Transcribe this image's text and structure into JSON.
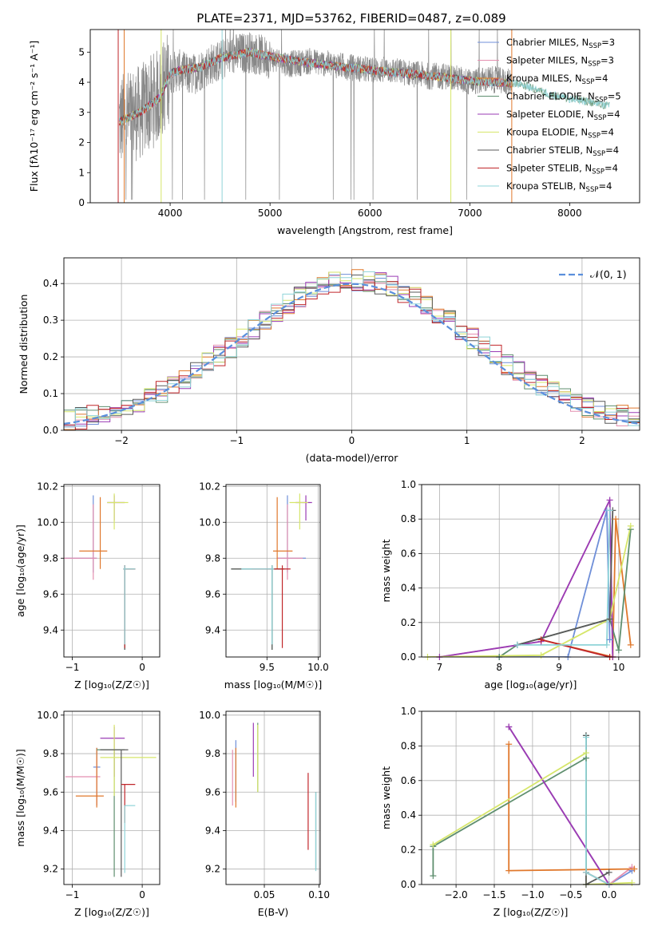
{
  "figure": {
    "title": "PLATE=2371, MJD=53762, FIBERID=0487, z=0.089"
  },
  "colors": {
    "Chabrier MILES": "#6f8fd8",
    "Salpeter MILES": "#e48fb0",
    "Kroupa MILES": "#e0782c",
    "Chabrier ELODIE": "#5f8f6f",
    "Salpeter ELODIE": "#9a3bb5",
    "Kroupa ELODIE": "#d6e66a",
    "Chabrier STELIB": "#5a5a5a",
    "Salpeter STELIB": "#c0262a",
    "Kroupa STELIB": "#8fd4d8",
    "data": "#888888",
    "normal": "#5a8fdc"
  },
  "legend_panel1": [
    {
      "name": "Chabrier MILES",
      "label_main": "Chabrier MILES, N",
      "label_sub": "SSP",
      "label_end": "=3"
    },
    {
      "name": "Salpeter MILES",
      "label_main": "Salpeter MILES, N",
      "label_sub": "SSP",
      "label_end": "=3"
    },
    {
      "name": "Kroupa MILES",
      "label_main": "Kroupa MILES, N",
      "label_sub": "SSP",
      "label_end": "=4"
    },
    {
      "name": "Chabrier ELODIE",
      "label_main": "Chabrier ELODIE, N",
      "label_sub": "SSP",
      "label_end": "=5"
    },
    {
      "name": "Salpeter ELODIE",
      "label_main": "Salpeter ELODIE, N",
      "label_sub": "SSP",
      "label_end": "=4"
    },
    {
      "name": "Kroupa ELODIE",
      "label_main": "Kroupa ELODIE, N",
      "label_sub": "SSP",
      "label_end": "=4"
    },
    {
      "name": "Chabrier STELIB",
      "label_main": "Chabrier STELIB, N",
      "label_sub": "SSP",
      "label_end": "=4"
    },
    {
      "name": "Salpeter STELIB",
      "label_main": "Salpeter STELIB, N",
      "label_sub": "SSP",
      "label_end": "=4"
    },
    {
      "name": "Kroupa STELIB",
      "label_main": "Kroupa STELIB, N",
      "label_sub": "SSP",
      "label_end": "=4"
    }
  ],
  "legend_panel2": {
    "label": "𝒩(0, 1)"
  },
  "chart_data": [
    {
      "id": "spectrum",
      "type": "line",
      "xlabel": "wavelength [Angstrom, rest frame]",
      "ylabel_main": "Flux [f",
      "ylabel_rest": "λ10⁻¹⁷ erg cm⁻² s⁻¹ A⁻¹]",
      "xlim": [
        3200,
        8700
      ],
      "ylim": [
        0,
        5.75
      ],
      "xticks": [
        4000,
        5000,
        6000,
        7000,
        8000
      ],
      "yticks": [
        0,
        1,
        2,
        3,
        4,
        5
      ],
      "grid": false,
      "legend_position": "top-right",
      "data_x": [
        3500,
        3600,
        3700,
        3800,
        3900,
        4000,
        4100,
        4200,
        4300,
        4400,
        4500,
        4600,
        4800,
        5000,
        5200,
        5400,
        5600,
        5800,
        6000,
        6200,
        6400,
        6600,
        6800,
        7000,
        7200,
        7400
      ],
      "data_y": [
        2.7,
        2.9,
        3.0,
        3.3,
        3.6,
        4.3,
        4.4,
        4.2,
        4.4,
        4.6,
        4.7,
        4.9,
        5.0,
        4.8,
        4.6,
        4.7,
        4.6,
        4.5,
        4.4,
        4.4,
        4.3,
        4.2,
        4.2,
        4.0,
        4.1,
        4.0
      ],
      "model_x": [
        3500,
        3700,
        3900,
        4000,
        4100,
        4300,
        4500,
        4800,
        5000,
        5500,
        6000,
        6500,
        7000,
        7500,
        7800,
        8000,
        8200,
        8400
      ],
      "model_y": [
        2.7,
        3.0,
        3.5,
        4.3,
        4.4,
        4.5,
        4.8,
        5.0,
        4.85,
        4.6,
        4.4,
        4.25,
        4.05,
        3.95,
        3.6,
        3.45,
        3.35,
        3.2
      ]
    },
    {
      "id": "residuals",
      "type": "line",
      "xlabel": "(data-model)/error",
      "ylabel": "Normed distribution",
      "xlim": [
        -2.5,
        2.5
      ],
      "ylim": [
        0,
        0.47
      ],
      "xticks": [
        -2,
        -1,
        0,
        1,
        2
      ],
      "yticks": [
        0.0,
        0.1,
        0.2,
        0.3,
        0.4
      ],
      "grid": true,
      "legend_position": "top-right",
      "normal": {
        "mean": 0,
        "sigma": 1
      }
    },
    {
      "id": "age_vs_Z",
      "type": "scatter",
      "xlabel": "Z [log₁₀(Z/Z☉)]",
      "ylabel": "age  [log₁₀(age/yr)]",
      "xlim": [
        -1.12,
        0.25
      ],
      "ylim": [
        9.25,
        10.21
      ],
      "xticks": [
        -1,
        0
      ],
      "yticks": [
        9.4,
        9.6,
        9.8,
        10.0,
        10.2
      ],
      "grid": true,
      "points": [
        {
          "model": "Chabrier MILES",
          "x": -0.7,
          "y": 9.8,
          "xerr": [
            0.4,
            0.05
          ],
          "yerr": [
            0.08,
            0.35
          ]
        },
        {
          "model": "Salpeter MILES",
          "x": -0.7,
          "y": 9.8,
          "xerr": [
            0.45,
            0.05
          ],
          "yerr": [
            0.12,
            0.3
          ]
        },
        {
          "model": "Kroupa MILES",
          "x": -0.6,
          "y": 9.84,
          "xerr": [
            0.3,
            0.1
          ],
          "yerr": [
            0.1,
            0.3
          ]
        },
        {
          "model": "Chabrier ELODIE",
          "x": -0.25,
          "y": 9.74,
          "xerr": [
            0.02,
            0.15
          ],
          "yerr": [
            0.45,
            0.02
          ]
        },
        {
          "model": "Salpeter ELODIE",
          "x": -0.4,
          "y": 10.11,
          "xerr": [
            0.1,
            0.15
          ],
          "yerr": [
            0.1,
            0.04
          ]
        },
        {
          "model": "Kroupa ELODIE",
          "x": -0.4,
          "y": 10.11,
          "xerr": [
            0.1,
            0.2
          ],
          "yerr": [
            0.15,
            0.05
          ]
        },
        {
          "model": "Chabrier STELIB",
          "x": -0.25,
          "y": 9.74,
          "xerr": [
            0.02,
            0.15
          ],
          "yerr": [
            0.45,
            0.02
          ]
        },
        {
          "model": "Salpeter STELIB",
          "x": -0.25,
          "y": 9.74,
          "xerr": [
            0.02,
            0.15
          ],
          "yerr": [
            0.44,
            0.02
          ]
        },
        {
          "model": "Kroupa STELIB",
          "x": -0.25,
          "y": 9.74,
          "xerr": [
            0.02,
            0.15
          ],
          "yerr": [
            0.42,
            0.02
          ]
        }
      ]
    },
    {
      "id": "age_vs_mass",
      "type": "scatter",
      "xlabel": "mass [log₁₀(M/M☉)]",
      "xlim": [
        9.1,
        10.02
      ],
      "ylim": [
        9.25,
        10.21
      ],
      "xticks": [
        9.5,
        10.0
      ],
      "yticks": [
        9.4,
        9.6,
        9.8,
        10.0,
        10.2
      ],
      "grid": true,
      "points": [
        {
          "model": "Chabrier MILES",
          "x": 9.7,
          "y": 9.8,
          "xerr": [
            0.1,
            0.18
          ],
          "yerr": [
            0.08,
            0.35
          ]
        },
        {
          "model": "Salpeter MILES",
          "x": 9.7,
          "y": 9.8,
          "xerr": [
            0.1,
            0.15
          ],
          "yerr": [
            0.12,
            0.3
          ]
        },
        {
          "model": "Kroupa MILES",
          "x": 9.6,
          "y": 9.84,
          "xerr": [
            0.04,
            0.15
          ],
          "yerr": [
            0.1,
            0.3
          ]
        },
        {
          "model": "Chabrier ELODIE",
          "x": 9.55,
          "y": 9.74,
          "xerr": [
            0.4,
            0.12
          ],
          "yerr": [
            0.45,
            0.02
          ]
        },
        {
          "model": "Salpeter ELODIE",
          "x": 9.88,
          "y": 10.11,
          "xerr": [
            0.1,
            0.06
          ],
          "yerr": [
            0.1,
            0.04
          ]
        },
        {
          "model": "Kroupa ELODIE",
          "x": 9.82,
          "y": 10.11,
          "xerr": [
            0.1,
            0.08
          ],
          "yerr": [
            0.15,
            0.05
          ]
        },
        {
          "model": "Chabrier STELIB",
          "x": 9.55,
          "y": 9.74,
          "xerr": [
            0.4,
            0.12
          ],
          "yerr": [
            0.45,
            0.02
          ]
        },
        {
          "model": "Salpeter STELIB",
          "x": 9.65,
          "y": 9.74,
          "xerr": [
            0.3,
            0.08
          ],
          "yerr": [
            0.44,
            0.02
          ]
        },
        {
          "model": "Kroupa STELIB",
          "x": 9.55,
          "y": 9.74,
          "xerr": [
            0.3,
            0.02
          ],
          "yerr": [
            0.42,
            0.02
          ]
        }
      ]
    },
    {
      "id": "weight_vs_age",
      "type": "line",
      "xlabel": "age  [log₁₀(age/yr)]",
      "ylabel": "mass weight",
      "xlim": [
        6.7,
        10.35
      ],
      "ylim": [
        0,
        1.0
      ],
      "xticks": [
        7,
        8,
        9,
        10
      ],
      "yticks": [
        0.0,
        0.2,
        0.4,
        0.6,
        0.8,
        1.0
      ],
      "grid": true,
      "series": [
        {
          "name": "Chabrier MILES",
          "x": [
            8.0,
            9.15,
            9.8,
            9.85
          ],
          "y": [
            0.0,
            0.0,
            0.85,
            0.1
          ]
        },
        {
          "name": "Salpeter MILES",
          "x": [
            7.0,
            8.7,
            9.85,
            9.9
          ],
          "y": [
            0.0,
            0.09,
            0.91,
            0.0
          ]
        },
        {
          "name": "Kroupa MILES",
          "x": [
            8.7,
            9.9,
            9.95,
            10.2
          ],
          "y": [
            0.1,
            0.0,
            0.8,
            0.07
          ]
        },
        {
          "name": "Chabrier ELODIE",
          "x": [
            8.0,
            8.3,
            9.85,
            10.0,
            10.2
          ],
          "y": [
            0.0,
            0.07,
            0.22,
            0.04,
            0.74
          ]
        },
        {
          "name": "Salpeter ELODIE",
          "x": [
            7.0,
            8.7,
            9.85,
            9.9
          ],
          "y": [
            0.0,
            0.09,
            0.91,
            0.0
          ]
        },
        {
          "name": "Kroupa ELODIE",
          "x": [
            6.8,
            8.7,
            9.85,
            10.2
          ],
          "y": [
            0.0,
            0.01,
            0.22,
            0.76
          ]
        },
        {
          "name": "Chabrier STELIB",
          "x": [
            8.3,
            9.85,
            9.9
          ],
          "y": [
            0.07,
            0.22,
            0.85
          ]
        },
        {
          "name": "Salpeter STELIB",
          "x": [
            8.7,
            9.85
          ],
          "y": [
            0.1,
            0.0
          ]
        },
        {
          "name": "Kroupa STELIB",
          "x": [
            8.3,
            9.8,
            9.85
          ],
          "y": [
            0.07,
            0.07,
            0.85
          ]
        }
      ]
    },
    {
      "id": "mass_vs_Z",
      "type": "scatter",
      "xlabel": "Z [log₁₀(Z/Z☉)]",
      "ylabel": "mass [log₁₀(M/M☉)]",
      "xlim": [
        -1.12,
        0.25
      ],
      "ylim": [
        9.12,
        10.02
      ],
      "xticks": [
        -1,
        0
      ],
      "yticks": [
        9.2,
        9.4,
        9.6,
        9.8,
        10.0
      ],
      "grid": true,
      "points": [
        {
          "model": "Chabrier MILES",
          "x": -0.65,
          "y": 9.73,
          "xerr": [
            0.05,
            0.05
          ],
          "yerr": [
            0.2,
            0.1
          ]
        },
        {
          "model": "Salpeter MILES",
          "x": -0.65,
          "y": 9.68,
          "xerr": [
            0.45,
            0.05
          ],
          "yerr": [
            0.15,
            0.1
          ]
        },
        {
          "model": "Kroupa MILES",
          "x": -0.65,
          "y": 9.58,
          "xerr": [
            0.3,
            0.1
          ],
          "yerr": [
            0.06,
            0.25
          ]
        },
        {
          "model": "Chabrier ELODIE",
          "x": -0.4,
          "y": 9.82,
          "xerr": [
            0.25,
            0.15
          ],
          "yerr": [
            0.66,
            0.0
          ]
        },
        {
          "model": "Salpeter ELODIE",
          "x": -0.4,
          "y": 9.88,
          "xerr": [
            0.2,
            0.15
          ],
          "yerr": [
            0.2,
            0.06
          ]
        },
        {
          "model": "Kroupa ELODIE",
          "x": -0.4,
          "y": 9.78,
          "xerr": [
            0.2,
            0.6
          ],
          "yerr": [
            0.2,
            0.17
          ]
        },
        {
          "model": "Chabrier STELIB",
          "x": -0.3,
          "y": 9.82,
          "xerr": [
            0.3,
            0.1
          ],
          "yerr": [
            0.66,
            0.0
          ]
        },
        {
          "model": "Salpeter STELIB",
          "x": -0.25,
          "y": 9.64,
          "xerr": [
            0.05,
            0.15
          ],
          "yerr": [
            0.2,
            0.0
          ]
        },
        {
          "model": "Kroupa STELIB",
          "x": -0.25,
          "y": 9.53,
          "xerr": [
            0.0,
            0.15
          ],
          "yerr": [
            0.35,
            0.0
          ]
        }
      ]
    },
    {
      "id": "mass_vs_ebv",
      "type": "scatter",
      "xlabel": "E(B-V)",
      "xlim": [
        0.015,
        0.101
      ],
      "ylim": [
        9.12,
        10.02
      ],
      "xticks": [
        0.05,
        0.1
      ],
      "yticks": [
        9.2,
        9.4,
        9.6,
        9.8,
        10.0
      ],
      "grid": true,
      "points": [
        {
          "model": "Chabrier MILES",
          "x": 0.024,
          "y": 9.75,
          "yerr": [
            0.2,
            0.12
          ]
        },
        {
          "model": "Salpeter MILES",
          "x": 0.021,
          "y": 9.68,
          "yerr": [
            0.15,
            0.14
          ]
        },
        {
          "model": "Kroupa MILES",
          "x": 0.024,
          "y": 9.58,
          "yerr": [
            0.06,
            0.25
          ]
        },
        {
          "model": "Chabrier ELODIE",
          "x": 0.044,
          "y": 9.8,
          "yerr": [
            0.2,
            0.16
          ]
        },
        {
          "model": "Salpeter ELODIE",
          "x": 0.04,
          "y": 9.82,
          "yerr": [
            0.14,
            0.14
          ]
        },
        {
          "model": "Kroupa ELODIE",
          "x": 0.044,
          "y": 9.78,
          "yerr": [
            0.18,
            0.17
          ]
        },
        {
          "model": "Chabrier STELIB",
          "x": 0.097,
          "y": 9.4,
          "yerr": [
            0.2,
            0.2
          ]
        },
        {
          "model": "Salpeter STELIB",
          "x": 0.09,
          "y": 9.5,
          "yerr": [
            0.2,
            0.2
          ]
        },
        {
          "model": "Kroupa STELIB",
          "x": 0.097,
          "y": 9.39,
          "yerr": [
            0.2,
            0.21
          ]
        }
      ]
    },
    {
      "id": "weight_vs_Z",
      "type": "line",
      "xlabel": "Z [log₁₀(Z/Z☉)]",
      "ylabel": "mass weight",
      "xlim": [
        -2.45,
        0.4
      ],
      "ylim": [
        0,
        1.0
      ],
      "xticks": [
        -2.0,
        -1.5,
        -1.0,
        -0.5,
        0.0
      ],
      "yticks": [
        0.0,
        0.2,
        0.4,
        0.6,
        0.8,
        1.0
      ],
      "grid": true,
      "series": [
        {
          "name": "Chabrier MILES",
          "x": [
            -1.31,
            0.0,
            0.3
          ],
          "y": [
            0.91,
            0.0,
            0.08
          ]
        },
        {
          "name": "Salpeter MILES",
          "x": [
            -1.31,
            0.0,
            0.3
          ],
          "y": [
            0.91,
            0.0,
            0.1
          ]
        },
        {
          "name": "Kroupa MILES",
          "x": [
            -1.31,
            -1.31,
            0.33
          ],
          "y": [
            0.81,
            0.08,
            0.09
          ]
        },
        {
          "name": "Chabrier ELODIE",
          "x": [
            -2.3,
            -2.3,
            -0.3,
            -0.3
          ],
          "y": [
            0.05,
            0.22,
            0.73,
            0.86
          ]
        },
        {
          "name": "Salpeter ELODIE",
          "x": [
            -1.31,
            0.0
          ],
          "y": [
            0.91,
            0.0
          ]
        },
        {
          "name": "Kroupa ELODIE",
          "x": [
            -2.3,
            -0.3,
            -0.3,
            0.3
          ],
          "y": [
            0.23,
            0.76,
            0.0,
            0.01
          ]
        },
        {
          "name": "Chabrier STELIB",
          "x": [
            -0.3,
            -0.3,
            0.0
          ],
          "y": [
            0.86,
            0.0,
            0.07
          ]
        },
        {
          "name": "Salpeter STELIB",
          "x": [
            -0.3,
            0.0
          ],
          "y": [
            0.07,
            0.0
          ]
        },
        {
          "name": "Kroupa STELIB",
          "x": [
            -0.3,
            -0.3,
            0.0
          ],
          "y": [
            0.85,
            0.07,
            0.0
          ]
        }
      ]
    }
  ]
}
